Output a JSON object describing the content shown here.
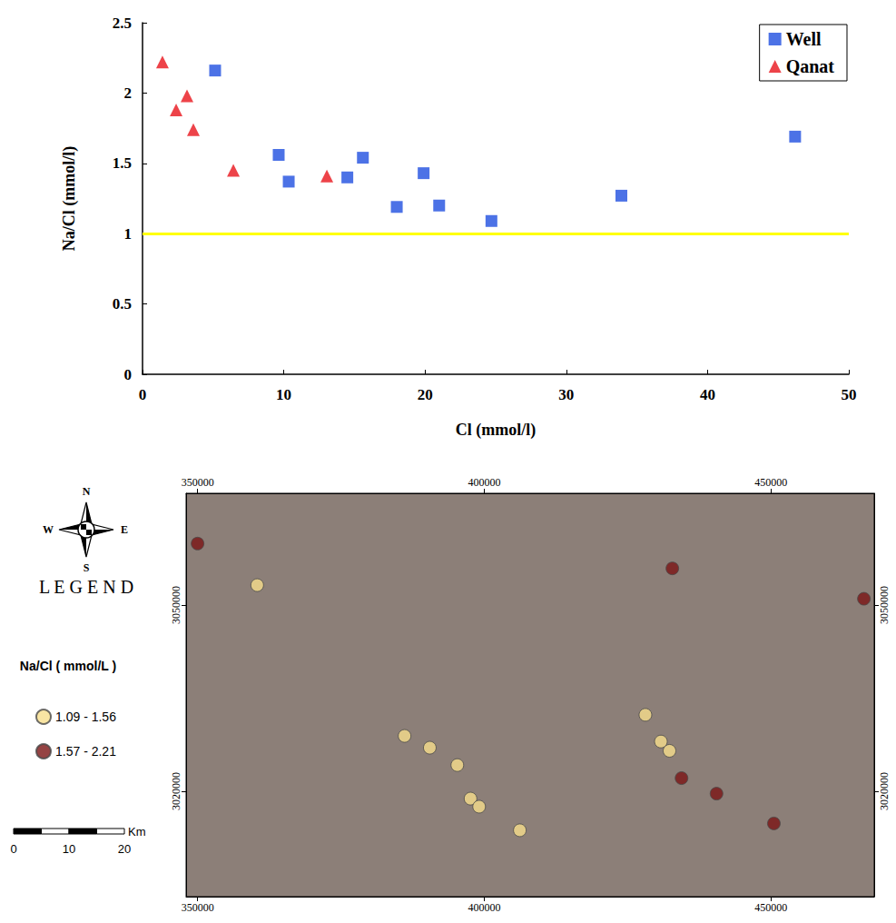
{
  "chart_data": [
    {
      "type": "scatter",
      "xlabel": "Cl (mmol/l)",
      "ylabel": "Na/Cl (mmol/l)",
      "xlim": [
        0,
        50
      ],
      "xticks": [
        0,
        10,
        20,
        30,
        40,
        50
      ],
      "ylim": [
        0,
        2.5
      ],
      "yticks": [
        0,
        0.5,
        1,
        1.5,
        2,
        2.5
      ],
      "grid": false,
      "legend": "upper right",
      "hline": {
        "value": 1,
        "color": "#ffff00"
      },
      "series": [
        {
          "name": "Well",
          "color": "#1f4fe0",
          "marker": "square",
          "x": [
            5.14,
            9.64,
            10.35,
            14.5,
            15.6,
            18.0,
            19.9,
            21.0,
            24.7,
            33.9,
            46.2
          ],
          "y": [
            2.16,
            1.56,
            1.37,
            1.4,
            1.54,
            1.19,
            1.43,
            1.2,
            1.09,
            1.27,
            1.69
          ]
        },
        {
          "name": "Qanat",
          "color": "#e8141c",
          "marker": "triangle",
          "x": [
            1.41,
            2.38,
            3.15,
            3.6,
            6.43,
            13.05
          ],
          "y": [
            2.22,
            1.88,
            1.98,
            1.74,
            1.45,
            1.41
          ]
        }
      ]
    },
    {
      "type": "map",
      "title": "LEGEND",
      "legend_title": "Na/Cl ( mmol/L )",
      "xlim": [
        348000,
        468000
      ],
      "xticks": [
        350000,
        400000,
        450000
      ],
      "ylim": [
        3003000,
        3068000
      ],
      "yticks": [
        3020000,
        3050000
      ],
      "grid": false,
      "legend": "left",
      "compass": [
        "N",
        "W",
        "E",
        "S"
      ],
      "scale_bar": {
        "ticks": [
          0,
          10,
          20
        ],
        "unit": "Km"
      },
      "series": [
        {
          "name": "1.09 - 1.56",
          "color": "#f7df8c",
          "marker": "circle",
          "x": [
            360400,
            386100,
            390500,
            395300,
            397600,
            399100,
            406200,
            428100,
            430800,
            432300
          ],
          "y": [
            3053200,
            3028900,
            3027000,
            3024200,
            3018800,
            3017500,
            3013700,
            3032300,
            3028000,
            3026500
          ]
        },
        {
          "name": "1.57 - 2.21",
          "color": "#7b1414",
          "marker": "circle",
          "x": [
            350000,
            432800,
            466200,
            434400,
            440500,
            450500
          ],
          "y": [
            3059900,
            3055900,
            3051000,
            3022100,
            3019600,
            3014800
          ]
        }
      ]
    }
  ]
}
